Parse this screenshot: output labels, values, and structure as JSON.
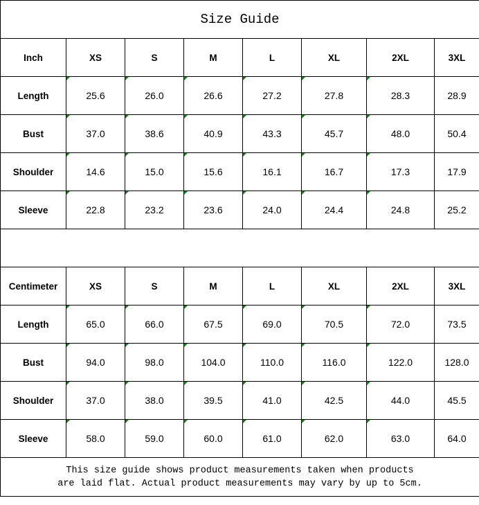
{
  "title": "Size Guide",
  "sizes": [
    "XS",
    "S",
    "M",
    "L",
    "XL",
    "2XL",
    "3XL"
  ],
  "accent_marker_color": "#1a7a1a",
  "tables": [
    {
      "unit": "Inch",
      "rows": [
        {
          "label": "Length",
          "values": [
            "25.6",
            "26.0",
            "26.6",
            "27.2",
            "27.8",
            "28.3",
            "28.9"
          ]
        },
        {
          "label": "Bust",
          "values": [
            "37.0",
            "38.6",
            "40.9",
            "43.3",
            "45.7",
            "48.0",
            "50.4"
          ]
        },
        {
          "label": "Shoulder",
          "values": [
            "14.6",
            "15.0",
            "15.6",
            "16.1",
            "16.7",
            "17.3",
            "17.9"
          ]
        },
        {
          "label": "Sleeve",
          "values": [
            "22.8",
            "23.2",
            "23.6",
            "24.0",
            "24.4",
            "24.8",
            "25.2"
          ]
        }
      ]
    },
    {
      "unit": "Centimeter",
      "rows": [
        {
          "label": "Length",
          "values": [
            "65.0",
            "66.0",
            "67.5",
            "69.0",
            "70.5",
            "72.0",
            "73.5"
          ]
        },
        {
          "label": "Bust",
          "values": [
            "94.0",
            "98.0",
            "104.0",
            "110.0",
            "116.0",
            "122.0",
            "128.0"
          ]
        },
        {
          "label": "Shoulder",
          "values": [
            "37.0",
            "38.0",
            "39.5",
            "41.0",
            "42.5",
            "44.0",
            "45.5"
          ]
        },
        {
          "label": "Sleeve",
          "values": [
            "58.0",
            "59.0",
            "60.0",
            "61.0",
            "62.0",
            "63.0",
            "64.0"
          ]
        }
      ]
    }
  ],
  "note_line1": "This size guide shows product measurements taken when products",
  "note_line2": "are laid flat. Actual product measurements may vary by up to 5cm."
}
